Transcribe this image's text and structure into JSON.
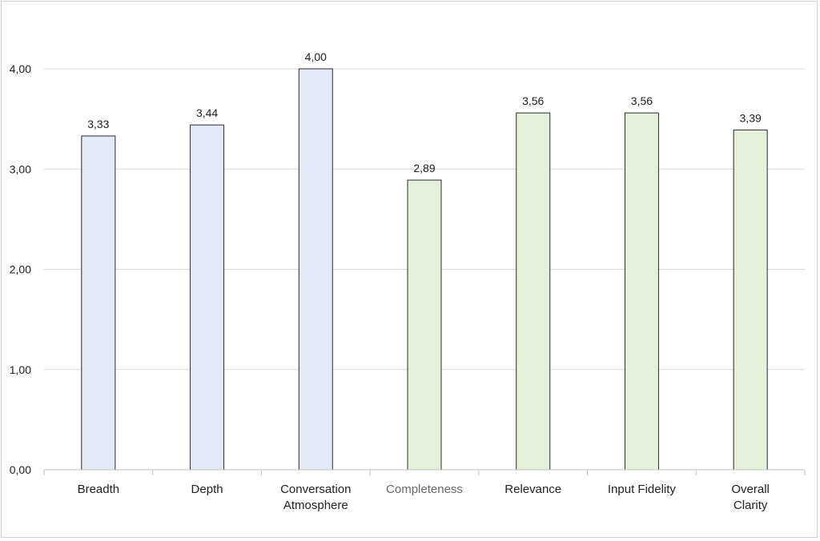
{
  "chart_data": {
    "type": "bar",
    "categories": [
      [
        "Breadth"
      ],
      [
        "Depth"
      ],
      [
        "Conversation",
        "Atmosphere"
      ],
      [
        "Completeness"
      ],
      [
        "Relevance"
      ],
      [
        "Input Fidelity"
      ],
      [
        "Overall",
        "Clarity"
      ]
    ],
    "values": [
      3.33,
      3.44,
      4.0,
      2.89,
      3.56,
      3.56,
      3.39
    ],
    "data_labels": [
      "3,33",
      "3,44",
      "4,00",
      "2,89",
      "3,56",
      "3,56",
      "3,39"
    ],
    "title": "",
    "xlabel": "",
    "ylabel": "",
    "ylim": [
      0,
      4
    ],
    "yticks": [
      0,
      1,
      2,
      3,
      4
    ],
    "ytick_labels": [
      "0,00",
      "1,00",
      "2,00",
      "3,00",
      "4,00"
    ],
    "grid": "horizontal",
    "legend": "none",
    "colors": {
      "group_1_fill": "#e3e9f7",
      "group_2_fill": "#e4f0d9",
      "bar_stroke": "#2b2b2b",
      "grid": "#d9d9d9",
      "axis": "#bfbfbf",
      "text": "#222222",
      "muted_text": "#666666"
    },
    "bar_fill_groups": [
      1,
      1,
      1,
      2,
      2,
      2,
      2
    ],
    "muted_category_index": 3
  }
}
